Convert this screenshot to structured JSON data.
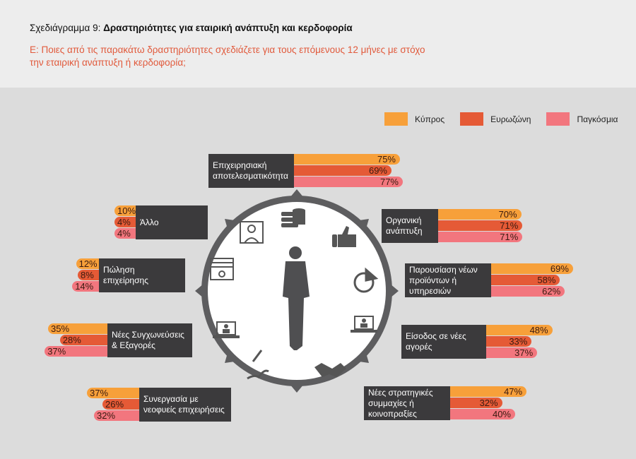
{
  "header": {
    "title_prefix": "Σχεδιάγραμμα 9: ",
    "title_main": "Δραστηριότητες για εταιρική ανάπτυξη και κερδοφορία",
    "question": "Ε: Ποιες από τις παρακάτω δραστηριότητες σχεδιάζετε για τους επόμενους 12 μήνες με στόχο την εταιρική ανάπτυξη ή κερδοφορία;"
  },
  "chart_data": {
    "type": "bar",
    "title": "Δραστηριότητες για εταιρική ανάπτυξη και κερδοφορία",
    "unit": "%",
    "series_names": [
      "Κύπρος",
      "Ευρωζώνη",
      "Παγκόσμια"
    ],
    "colors": [
      "#f7a03a",
      "#e55a36",
      "#f2767e"
    ],
    "legend_position": "top-right",
    "categories": [
      {
        "label": "Επιχειρησιακή αποτελεσματικότητα",
        "values": [
          75,
          69,
          77
        ]
      },
      {
        "label": "Οργανική ανάπτυξη",
        "values": [
          70,
          71,
          71
        ]
      },
      {
        "label": "Παρουσίαση νέων προϊόντων ή υπηρεσιών",
        "values": [
          69,
          58,
          62
        ]
      },
      {
        "label": "Είσοδος σε νέες αγορές",
        "values": [
          48,
          33,
          37
        ]
      },
      {
        "label": "Νέες στρατηγικές συμμαχίες ή κοινοπραξίες",
        "values": [
          47,
          32,
          40
        ]
      },
      {
        "label": "Συνεργασία με νεοφυείς επιχειρήσεις",
        "values": [
          37,
          26,
          32
        ]
      },
      {
        "label": "Νέες Συγχωνεύσεις & Εξαγορές",
        "values": [
          35,
          28,
          37
        ]
      },
      {
        "label": "Πώληση επιχείρησης",
        "values": [
          12,
          8,
          14
        ]
      },
      {
        "label": "Άλλο",
        "values": [
          10,
          4,
          4
        ]
      }
    ]
  },
  "icons": [
    "coins-icon",
    "thumbs-up-icon",
    "pie-chart-icon",
    "laptop-user-icon",
    "handshake-icon",
    "pen-signature-icon",
    "laptop-user-icon",
    "banknote-icon",
    "user-frame-icon",
    "businessman-icon"
  ]
}
